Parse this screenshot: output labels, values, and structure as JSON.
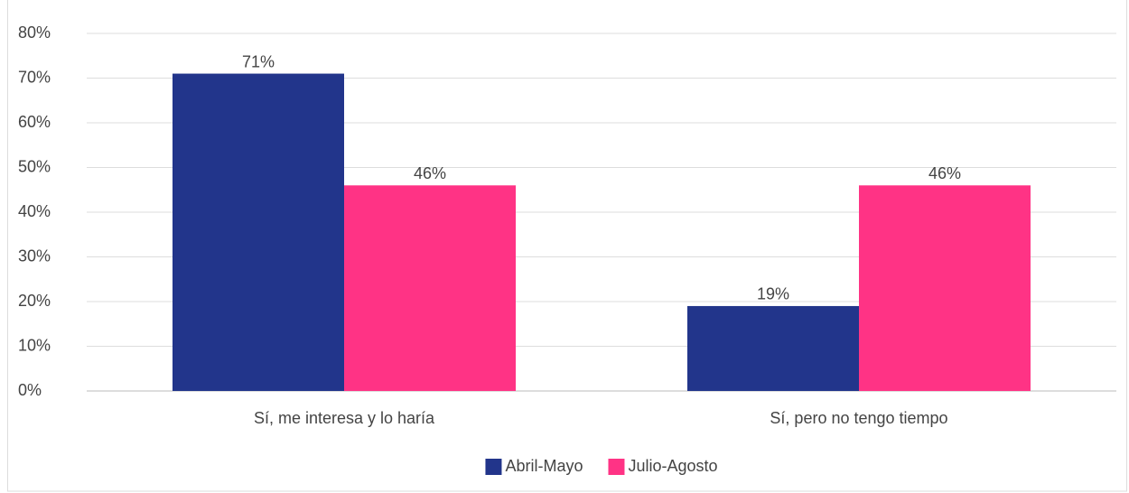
{
  "chart_data": {
    "type": "bar",
    "categories": [
      "Sí, me interesa y lo haría",
      "Sí, pero no tengo tiempo"
    ],
    "series": [
      {
        "name": "Abril-Mayo",
        "color": "#22358b",
        "values": [
          71,
          19
        ],
        "value_labels": [
          "71%",
          "19%"
        ]
      },
      {
        "name": "Julio-Agosto",
        "color": "#ff3385",
        "values": [
          46,
          46
        ],
        "value_labels": [
          "46%",
          "46%"
        ]
      }
    ],
    "ylim": [
      0,
      80
    ],
    "yticks": [
      {
        "value": 0,
        "label": "0%"
      },
      {
        "value": 10,
        "label": "10%"
      },
      {
        "value": 20,
        "label": "20%"
      },
      {
        "value": 30,
        "label": "30%"
      },
      {
        "value": 40,
        "label": "40%"
      },
      {
        "value": 50,
        "label": "50%"
      },
      {
        "value": 60,
        "label": "60%"
      },
      {
        "value": 70,
        "label": "70%"
      },
      {
        "value": 80,
        "label": "80%"
      }
    ],
    "grid": true,
    "legend": "bottom"
  }
}
